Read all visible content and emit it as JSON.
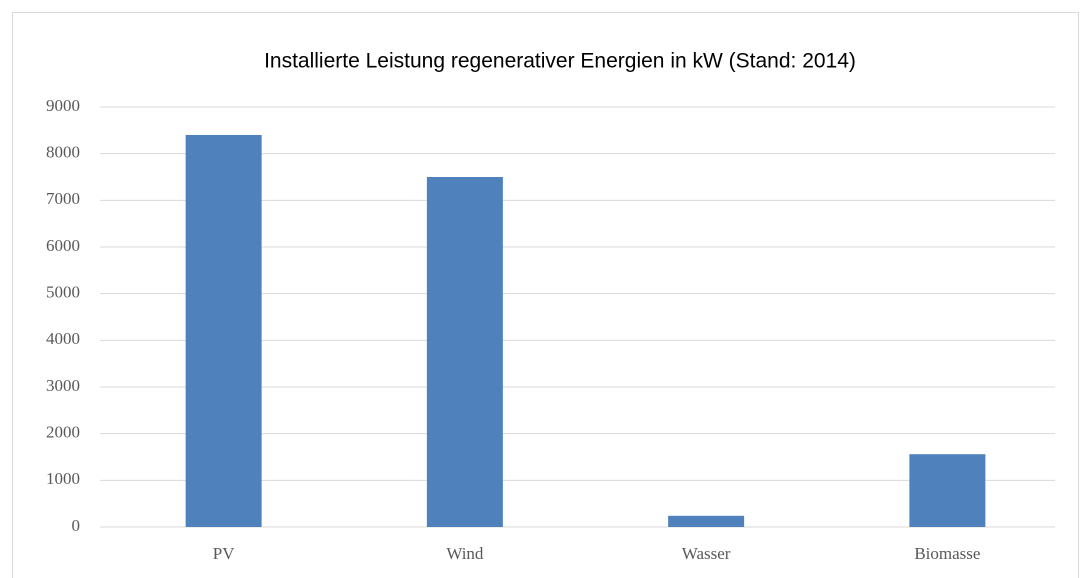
{
  "chart_data": {
    "type": "bar",
    "title": "Installierte Leistung regenerativer Energien in kW (Stand: 2014)",
    "categories": [
      "PV",
      "Wind",
      "Wasser",
      "Biomasse"
    ],
    "values": [
      8400,
      7500,
      240,
      1560
    ],
    "color": "#4f81bd",
    "ylim": [
      0,
      9000
    ],
    "yticks": [
      0,
      1000,
      2000,
      3000,
      4000,
      5000,
      6000,
      7000,
      8000,
      9000
    ],
    "grid": true
  }
}
